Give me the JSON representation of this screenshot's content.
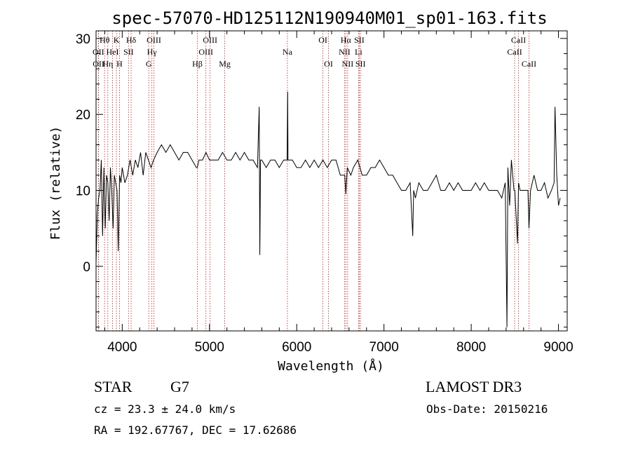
{
  "chart_data": {
    "type": "line",
    "title": "spec-57070-HD125112N190940M01_sp01-163.fits",
    "xlabel": "Wavelength (Å)",
    "ylabel": "Flux (relative)",
    "xlim": [
      3700,
      9100
    ],
    "ylim": [
      -8.5,
      31
    ],
    "x_ticks": [
      4000,
      5000,
      6000,
      7000,
      8000,
      9000
    ],
    "y_ticks": [
      0,
      10,
      20,
      30
    ],
    "grid": false,
    "series": [
      {
        "x": [
          3700,
          3715,
          3730,
          3745,
          3760,
          3775,
          3790,
          3805,
          3820,
          3835,
          3850,
          3865,
          3880,
          3895,
          3910,
          3925,
          3940,
          3955,
          3970,
          3985,
          4000,
          4030,
          4060,
          4090,
          4120,
          4150,
          4180,
          4210,
          4240,
          4270,
          4300,
          4330,
          4360,
          4400,
          4450,
          4500,
          4550,
          4600,
          4650,
          4700,
          4750,
          4800,
          4850,
          4861,
          4880,
          4920,
          4960,
          5000,
          5050,
          5100,
          5150,
          5200,
          5250,
          5300,
          5350,
          5400,
          5450,
          5500,
          5550,
          5570,
          5577,
          5585,
          5600,
          5650,
          5700,
          5750,
          5800,
          5850,
          5890,
          5896,
          5900,
          5950,
          6000,
          6050,
          6100,
          6150,
          6200,
          6250,
          6300,
          6350,
          6400,
          6450,
          6500,
          6550,
          6563,
          6580,
          6620,
          6650,
          6700,
          6750,
          6800,
          6850,
          6900,
          6950,
          7000,
          7050,
          7100,
          7150,
          7200,
          7250,
          7300,
          7330,
          7340,
          7360,
          7400,
          7450,
          7500,
          7550,
          7600,
          7650,
          7700,
          7750,
          7800,
          7850,
          7900,
          7950,
          8000,
          8050,
          8100,
          8150,
          8200,
          8250,
          8300,
          8350,
          8390,
          8410,
          8420,
          8440,
          8460,
          8490,
          8500,
          8530,
          8542,
          8560,
          8600,
          8650,
          8662,
          8680,
          8720,
          8760,
          8800,
          8840,
          8880,
          8920,
          8950,
          8960,
          8980,
          9000,
          9020
        ],
        "y": [
          0.5,
          7,
          9,
          10,
          14,
          4,
          13,
          5,
          12,
          11,
          6,
          13,
          10,
          5,
          12,
          11,
          10,
          2,
          12,
          11,
          13,
          11,
          12,
          14,
          12,
          14,
          13,
          15,
          12,
          15,
          14,
          13,
          14,
          15,
          16,
          15,
          16,
          15,
          14,
          15,
          15,
          14,
          13,
          13,
          14,
          14,
          15,
          14,
          14,
          14,
          15,
          14,
          14,
          15,
          14,
          15,
          14,
          14,
          13,
          21,
          1.5,
          14,
          14,
          13,
          14,
          14,
          13,
          14,
          14,
          23,
          14,
          14,
          13,
          13,
          14,
          13,
          14,
          13,
          14,
          13,
          14,
          14,
          12,
          12,
          9.5,
          13,
          12,
          13,
          14,
          12,
          12,
          13,
          13,
          14,
          13,
          12,
          12,
          11,
          10,
          10,
          11,
          4,
          10,
          9,
          11,
          10,
          10,
          11,
          12,
          10,
          10,
          11,
          10,
          11,
          10,
          10,
          10,
          11,
          10,
          11,
          10,
          10,
          10,
          9,
          11,
          -8,
          13,
          8,
          14,
          10,
          10,
          3,
          11,
          10,
          10,
          10,
          5,
          10,
          12,
          10,
          10,
          11,
          9,
          10,
          11,
          21,
          12,
          8,
          9
        ]
      }
    ],
    "spectral_lines": [
      {
        "label": "Hθ",
        "x": 3798,
        "row": 0
      },
      {
        "label": "OII",
        "x": 3727,
        "row": 1
      },
      {
        "label": "OII",
        "x": 3729,
        "row": 2
      },
      {
        "label": "K",
        "x": 3934,
        "row": 0
      },
      {
        "label": "HeI",
        "x": 3889,
        "row": 1
      },
      {
        "label": "Hη",
        "x": 3835,
        "row": 2
      },
      {
        "label": "Hδ",
        "x": 4102,
        "row": 0
      },
      {
        "label": "SII",
        "x": 4072,
        "row": 1
      },
      {
        "label": "H",
        "x": 3969,
        "row": 2
      },
      {
        "label": "OIII",
        "x": 4363,
        "row": 0
      },
      {
        "label": "Hγ",
        "x": 4340,
        "row": 1
      },
      {
        "label": "G",
        "x": 4304,
        "row": 2
      },
      {
        "label": "OIII",
        "x": 5007,
        "row": 0
      },
      {
        "label": "OIII",
        "x": 4959,
        "row": 1
      },
      {
        "label": "Hβ",
        "x": 4861,
        "row": 2
      },
      {
        "label": "Mg",
        "x": 5175,
        "row": 2
      },
      {
        "label": "Na",
        "x": 5893,
        "row": 1
      },
      {
        "label": "OI",
        "x": 6300,
        "row": 0
      },
      {
        "label": "OI",
        "x": 6364,
        "row": 2
      },
      {
        "label": "Hα",
        "x": 6563,
        "row": 0
      },
      {
        "label": "NII",
        "x": 6548,
        "row": 1
      },
      {
        "label": "NII",
        "x": 6584,
        "row": 2
      },
      {
        "label": "SII",
        "x": 6717,
        "row": 0
      },
      {
        "label": "Li",
        "x": 6708,
        "row": 1
      },
      {
        "label": "SII",
        "x": 6731,
        "row": 2
      },
      {
        "label": "CaII",
        "x": 8542,
        "row": 0
      },
      {
        "label": "CaII",
        "x": 8498,
        "row": 1
      },
      {
        "label": "CaII",
        "x": 8662,
        "row": 2
      }
    ]
  },
  "info": {
    "class_label": "STAR",
    "subclass": "G7",
    "survey": "LAMOST DR3",
    "redshift": "cz = 23.3 ± 24.0 km/s",
    "obs_date": "Obs-Date: 20150216",
    "coords": "RA = 192.67767, DEC =  17.62686"
  },
  "colors": {
    "spectrum": "#000000",
    "line_markers": "#b22222",
    "axes": "#000000"
  }
}
